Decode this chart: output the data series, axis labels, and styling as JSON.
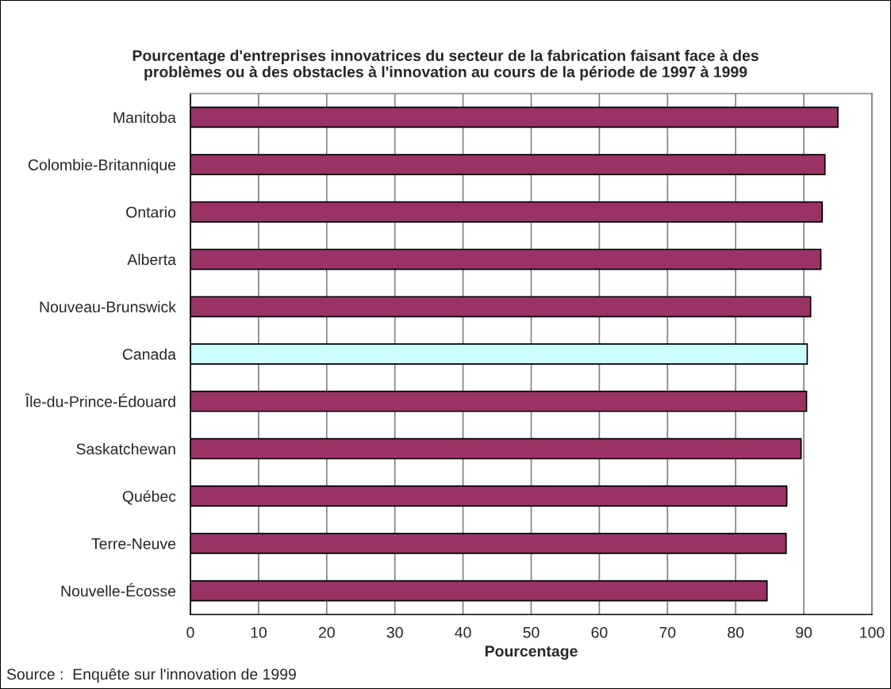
{
  "chart_data": {
    "type": "bar",
    "orientation": "horizontal",
    "title": "Pourcentage d'entreprises innovatrices du secteur de la fabrication faisant face à des\nproblèmes ou à des obstacles à l'innovation au cours de la période de 1997 à 1999",
    "xlabel": "Pourcentage",
    "categories": [
      "Manitoba",
      "Colombie-Britannique",
      "Ontario",
      "Alberta",
      "Nouveau-Brunswick",
      "Canada",
      "Île-du-Prince-Édouard",
      "Saskatchewan",
      "Québec",
      "Terre-Neuve",
      "Nouvelle-Écosse"
    ],
    "values": [
      95.0,
      93.1,
      92.7,
      92.5,
      91.0,
      90.5,
      90.4,
      89.6,
      87.5,
      87.4,
      84.6
    ],
    "colors": [
      "#993366",
      "#993366",
      "#993366",
      "#993366",
      "#993366",
      "#ccffff",
      "#993366",
      "#993366",
      "#993366",
      "#993366",
      "#993366"
    ],
    "xlim": [
      0,
      100
    ],
    "xticks": [
      0,
      10,
      20,
      30,
      40,
      50,
      60,
      70,
      80,
      90,
      100
    ],
    "grid": "x",
    "annotations": [
      "Source :  Enquête sur l'innovation de 1999"
    ]
  }
}
